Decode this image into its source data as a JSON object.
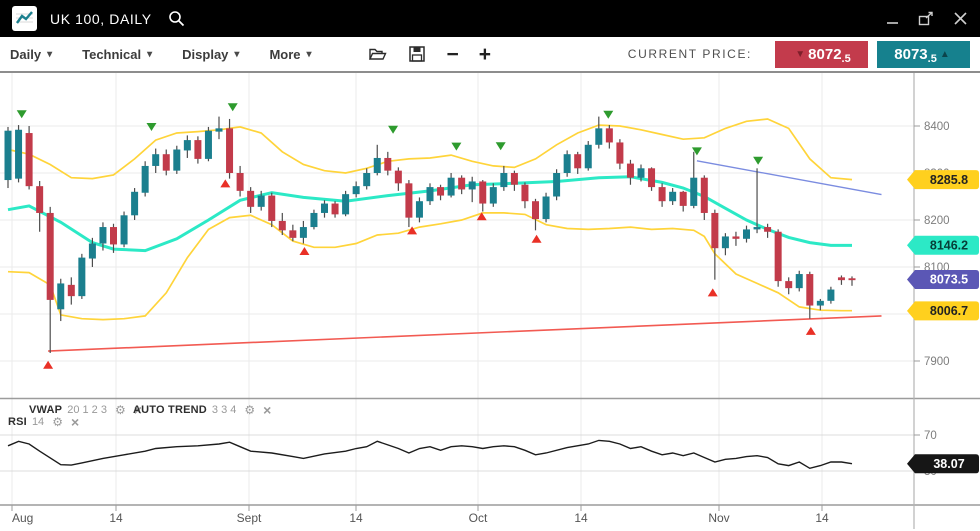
{
  "titlebar": {
    "title": "UK 100, DAILY"
  },
  "toolbar": {
    "menus": [
      {
        "label": "Daily"
      },
      {
        "label": "Technical"
      },
      {
        "label": "Display"
      },
      {
        "label": "More"
      }
    ],
    "zoom_out_label": "−",
    "zoom_in_label": "+",
    "current_price_label": "CURRENT PRICE:",
    "bid": {
      "main": "8072",
      "frac": ".5",
      "direction": "down"
    },
    "ask": {
      "main": "8073",
      "frac": ".5",
      "direction": "up"
    }
  },
  "indicators": [
    {
      "name": "VWAP",
      "params": "20 1 2 3"
    },
    {
      "name": "AUTO TREND",
      "params": "3 3 4"
    },
    {
      "name": "RSI",
      "params": "14"
    }
  ],
  "colors": {
    "up_candle": "#1b7f8e",
    "down_candle": "#c23b4a",
    "bid_badge": "#c33b4c",
    "ask_badge": "#16818e",
    "band": "#ffd43a",
    "sma": "#2ce9c6",
    "trend_red": "#f25a52",
    "trend_blue": "#7b8ce0",
    "buy_marker": "#e93026",
    "sell_marker": "#2e9b2e",
    "badge_yellow": "#ffd01e",
    "badge_cyan": "#2ce9c6",
    "badge_purple": "#5b57b5",
    "badge_black": "#161616",
    "grid": "#ebebeb",
    "axis_text": "#7d7d7d",
    "wick": "#4d4d4d"
  },
  "chart_data": {
    "type": "candlestick",
    "symbol": "UK 100",
    "timeframe": "DAILY",
    "y_axis": {
      "ticks": [
        8400,
        8300,
        8200,
        8100,
        8000,
        7900
      ],
      "badges": [
        {
          "value": "8285.8",
          "color": "badge_yellow",
          "text": "#222"
        },
        {
          "value": "8146.2",
          "color": "badge_cyan",
          "text": "#063e38"
        },
        {
          "value": "8073.5",
          "color": "badge_purple",
          "text": "#fff"
        },
        {
          "value": "8006.7",
          "color": "badge_yellow",
          "text": "#222"
        }
      ]
    },
    "x_axis": {
      "tick_labels": [
        "Aug",
        "14",
        "Sept",
        "14",
        "Oct",
        "14",
        "Nov",
        "14"
      ],
      "tick_x": [
        12,
        116,
        249,
        356,
        478,
        581,
        719,
        822
      ]
    },
    "candles": [
      [
        8285,
        8398,
        8268,
        8390
      ],
      [
        8288,
        8402,
        8280,
        8392
      ],
      [
        8385,
        8400,
        8265,
        8272
      ],
      [
        8272,
        8283,
        8175,
        8215
      ],
      [
        8215,
        8228,
        7917,
        8030
      ],
      [
        8010,
        8075,
        7985,
        8065
      ],
      [
        8062,
        8078,
        8020,
        8038
      ],
      [
        8038,
        8128,
        8032,
        8120
      ],
      [
        8118,
        8162,
        8100,
        8150
      ],
      [
        8150,
        8195,
        8135,
        8185
      ],
      [
        8185,
        8192,
        8130,
        8148
      ],
      [
        8148,
        8218,
        8142,
        8210
      ],
      [
        8210,
        8268,
        8200,
        8260
      ],
      [
        8258,
        8325,
        8250,
        8315
      ],
      [
        8315,
        8352,
        8300,
        8340
      ],
      [
        8340,
        8350,
        8295,
        8305
      ],
      [
        8305,
        8358,
        8298,
        8350
      ],
      [
        8348,
        8380,
        8332,
        8370
      ],
      [
        8370,
        8378,
        8320,
        8330
      ],
      [
        8330,
        8398,
        8325,
        8390
      ],
      [
        8388,
        8420,
        8372,
        8395
      ],
      [
        8395,
        8415,
        8288,
        8300
      ],
      [
        8300,
        8315,
        8250,
        8262
      ],
      [
        8262,
        8270,
        8215,
        8228
      ],
      [
        8228,
        8262,
        8220,
        8252
      ],
      [
        8252,
        8258,
        8185,
        8198
      ],
      [
        8198,
        8215,
        8168,
        8178
      ],
      [
        8178,
        8190,
        8155,
        8162
      ],
      [
        8162,
        8198,
        8150,
        8185
      ],
      [
        8185,
        8222,
        8180,
        8215
      ],
      [
        8215,
        8242,
        8205,
        8235
      ],
      [
        8235,
        8240,
        8205,
        8212
      ],
      [
        8212,
        8262,
        8208,
        8255
      ],
      [
        8255,
        8282,
        8248,
        8272
      ],
      [
        8272,
        8310,
        8265,
        8300
      ],
      [
        8300,
        8360,
        8295,
        8332
      ],
      [
        8332,
        8345,
        8295,
        8305
      ],
      [
        8305,
        8312,
        8262,
        8278
      ],
      [
        8278,
        8285,
        8185,
        8205
      ],
      [
        8205,
        8248,
        8195,
        8240
      ],
      [
        8240,
        8278,
        8232,
        8270
      ],
      [
        8270,
        8275,
        8242,
        8252
      ],
      [
        8252,
        8300,
        8248,
        8290
      ],
      [
        8290,
        8295,
        8255,
        8265
      ],
      [
        8265,
        8292,
        8238,
        8282
      ],
      [
        8282,
        8285,
        8218,
        8235
      ],
      [
        8235,
        8278,
        8228,
        8270
      ],
      [
        8270,
        8315,
        8262,
        8300
      ],
      [
        8300,
        8305,
        8262,
        8275
      ],
      [
        8275,
        8280,
        8225,
        8240
      ],
      [
        8240,
        8245,
        8178,
        8202
      ],
      [
        8202,
        8258,
        8195,
        8250
      ],
      [
        8250,
        8308,
        8242,
        8300
      ],
      [
        8300,
        8348,
        8292,
        8340
      ],
      [
        8340,
        8345,
        8298,
        8310
      ],
      [
        8310,
        8368,
        8305,
        8360
      ],
      [
        8360,
        8420,
        8352,
        8395
      ],
      [
        8395,
        8402,
        8352,
        8365
      ],
      [
        8365,
        8372,
        8308,
        8320
      ],
      [
        8320,
        8328,
        8275,
        8290
      ],
      [
        8290,
        8318,
        8282,
        8310
      ],
      [
        8310,
        8312,
        8262,
        8270
      ],
      [
        8270,
        8278,
        8228,
        8240
      ],
      [
        8240,
        8268,
        8232,
        8260
      ],
      [
        8260,
        8262,
        8218,
        8230
      ],
      [
        8230,
        8345,
        8225,
        8290
      ],
      [
        8290,
        8295,
        8200,
        8215
      ],
      [
        8215,
        8222,
        8073,
        8140
      ],
      [
        8140,
        8172,
        8125,
        8165
      ],
      [
        8165,
        8175,
        8145,
        8160
      ],
      [
        8160,
        8188,
        8152,
        8180
      ],
      [
        8180,
        8310,
        8172,
        8185
      ],
      [
        8185,
        8192,
        8162,
        8175
      ],
      [
        8175,
        8180,
        8058,
        8070
      ],
      [
        8070,
        8078,
        8042,
        8055
      ],
      [
        8055,
        8092,
        8048,
        8085
      ],
      [
        8085,
        8090,
        7990,
        8018
      ],
      [
        8018,
        8032,
        8008,
        8028
      ],
      [
        8028,
        8058,
        8022,
        8052
      ],
      [
        8078,
        8082,
        8062,
        8072
      ],
      [
        8076,
        8080,
        8060,
        8072
      ]
    ],
    "overlays": {
      "bollinger_upper": [
        [
          0,
          8350
        ],
        [
          2,
          8340
        ],
        [
          4,
          8318
        ],
        [
          6,
          8290
        ],
        [
          8,
          8288
        ],
        [
          10,
          8296
        ],
        [
          12,
          8330
        ],
        [
          14,
          8370
        ],
        [
          16,
          8385
        ],
        [
          18,
          8388
        ],
        [
          20,
          8392
        ],
        [
          22,
          8398
        ],
        [
          24,
          8385
        ],
        [
          26,
          8345
        ],
        [
          28,
          8318
        ],
        [
          30,
          8305
        ],
        [
          32,
          8300
        ],
        [
          34,
          8310
        ],
        [
          36,
          8325
        ],
        [
          38,
          8330
        ],
        [
          40,
          8332
        ],
        [
          42,
          8338
        ],
        [
          44,
          8325
        ],
        [
          46,
          8315
        ],
        [
          48,
          8312
        ],
        [
          50,
          8330
        ],
        [
          52,
          8360
        ],
        [
          54,
          8385
        ],
        [
          56,
          8402
        ],
        [
          58,
          8400
        ],
        [
          60,
          8392
        ],
        [
          62,
          8382
        ],
        [
          64,
          8372
        ],
        [
          66,
          8375
        ],
        [
          68,
          8395
        ],
        [
          70,
          8410
        ],
        [
          72,
          8415
        ],
        [
          74,
          8395
        ],
        [
          76,
          8330
        ],
        [
          78,
          8290
        ],
        [
          80,
          8286
        ]
      ],
      "sma": [
        [
          0,
          8222
        ],
        [
          2,
          8230
        ],
        [
          5,
          8195
        ],
        [
          8,
          8152
        ],
        [
          10,
          8138
        ],
        [
          13,
          8135
        ],
        [
          16,
          8160
        ],
        [
          19,
          8200
        ],
        [
          22,
          8242
        ],
        [
          25,
          8258
        ],
        [
          28,
          8248
        ],
        [
          32,
          8240
        ],
        [
          36,
          8252
        ],
        [
          40,
          8262
        ],
        [
          44,
          8275
        ],
        [
          48,
          8278
        ],
        [
          52,
          8282
        ],
        [
          56,
          8290
        ],
        [
          59,
          8292
        ],
        [
          62,
          8280
        ],
        [
          64,
          8268
        ],
        [
          66,
          8250
        ],
        [
          68,
          8225
        ],
        [
          70,
          8200
        ],
        [
          72,
          8180
        ],
        [
          74,
          8163
        ],
        [
          76,
          8152
        ],
        [
          78,
          8146
        ],
        [
          80,
          8146
        ]
      ],
      "bollinger_lower": [
        [
          0,
          8090
        ],
        [
          2,
          8088
        ],
        [
          4,
          8062
        ],
        [
          5,
          7998
        ],
        [
          7,
          7990
        ],
        [
          9,
          7988
        ],
        [
          11,
          7990
        ],
        [
          13,
          7996
        ],
        [
          15,
          8045
        ],
        [
          17,
          8120
        ],
        [
          19,
          8180
        ],
        [
          21,
          8205
        ],
        [
          23,
          8210
        ],
        [
          25,
          8190
        ],
        [
          27,
          8155
        ],
        [
          29,
          8142
        ],
        [
          31,
          8142
        ],
        [
          33,
          8150
        ],
        [
          35,
          8168
        ],
        [
          37,
          8172
        ],
        [
          39,
          8185
        ],
        [
          41,
          8192
        ],
        [
          43,
          8200
        ],
        [
          45,
          8215
        ],
        [
          47,
          8215
        ],
        [
          49,
          8212
        ],
        [
          51,
          8190
        ],
        [
          53,
          8182
        ],
        [
          55,
          8180
        ],
        [
          57,
          8182
        ],
        [
          59,
          8185
        ],
        [
          61,
          8180
        ],
        [
          63,
          8182
        ],
        [
          65,
          8178
        ],
        [
          66,
          8165
        ],
        [
          67,
          8128
        ],
        [
          69,
          8085
        ],
        [
          71,
          8065
        ],
        [
          73,
          8045
        ],
        [
          75,
          8015
        ],
        [
          77,
          8008
        ],
        [
          79,
          8007
        ],
        [
          80,
          8007
        ]
      ],
      "trend_red": [
        [
          3.8,
          7921
        ],
        [
          82.8,
          7996
        ]
      ],
      "trend_blue": [
        [
          65.3,
          8326
        ],
        [
          82.8,
          8254
        ]
      ]
    },
    "signals": {
      "sell": [
        [
          1.3,
          8425
        ],
        [
          13.6,
          8398
        ],
        [
          21.3,
          8440
        ],
        [
          36.5,
          8392
        ],
        [
          42.5,
          8356
        ],
        [
          46.7,
          8357
        ],
        [
          56.9,
          8424
        ],
        [
          65.3,
          8346
        ],
        [
          71.1,
          8326
        ]
      ],
      "buy": [
        [
          3.8,
          7892
        ],
        [
          20.6,
          8278
        ],
        [
          28.1,
          8134
        ],
        [
          38.3,
          8178
        ],
        [
          44.9,
          8208
        ],
        [
          50.1,
          8160
        ],
        [
          66.8,
          8046
        ],
        [
          76.1,
          7964
        ]
      ]
    },
    "rsi": {
      "period": 14,
      "levels": [
        70,
        30
      ],
      "last": "38.07",
      "values": [
        [
          0,
          58
        ],
        [
          1,
          63
        ],
        [
          2,
          60
        ],
        [
          3,
          52
        ],
        [
          5,
          37
        ],
        [
          6,
          36.5
        ],
        [
          7,
          39
        ],
        [
          9,
          44
        ],
        [
          11,
          48
        ],
        [
          13,
          52
        ],
        [
          14,
          55
        ],
        [
          16,
          57
        ],
        [
          18,
          58
        ],
        [
          20,
          60
        ],
        [
          21,
          62
        ],
        [
          22,
          57
        ],
        [
          23,
          52
        ],
        [
          25,
          50
        ],
        [
          27,
          46
        ],
        [
          28,
          44
        ],
        [
          30,
          49
        ],
        [
          32,
          52
        ],
        [
          33,
          55
        ],
        [
          34,
          57
        ],
        [
          35,
          63
        ],
        [
          36,
          59
        ],
        [
          37,
          55
        ],
        [
          38,
          50
        ],
        [
          39,
          55
        ],
        [
          40,
          57
        ],
        [
          41,
          53
        ],
        [
          42,
          57
        ],
        [
          43,
          58
        ],
        [
          44,
          57
        ],
        [
          45,
          55
        ],
        [
          46,
          57
        ],
        [
          47,
          58
        ],
        [
          48,
          57
        ],
        [
          49,
          53
        ],
        [
          50,
          48
        ],
        [
          51,
          50
        ],
        [
          53,
          56
        ],
        [
          55,
          60
        ],
        [
          56,
          64
        ],
        [
          57,
          63
        ],
        [
          58,
          60
        ],
        [
          59,
          55
        ],
        [
          60,
          57
        ],
        [
          61,
          52
        ],
        [
          62,
          48
        ],
        [
          63,
          50
        ],
        [
          64,
          47
        ],
        [
          65,
          50
        ],
        [
          66,
          45
        ],
        [
          67,
          40
        ],
        [
          68,
          43
        ],
        [
          69,
          44
        ],
        [
          70,
          46
        ],
        [
          71,
          47
        ],
        [
          72,
          45
        ],
        [
          73,
          38
        ],
        [
          74,
          36
        ],
        [
          75,
          40
        ],
        [
          76,
          33
        ],
        [
          77,
          36
        ],
        [
          78,
          40
        ],
        [
          79,
          40
        ],
        [
          80,
          38.07
        ]
      ]
    }
  }
}
